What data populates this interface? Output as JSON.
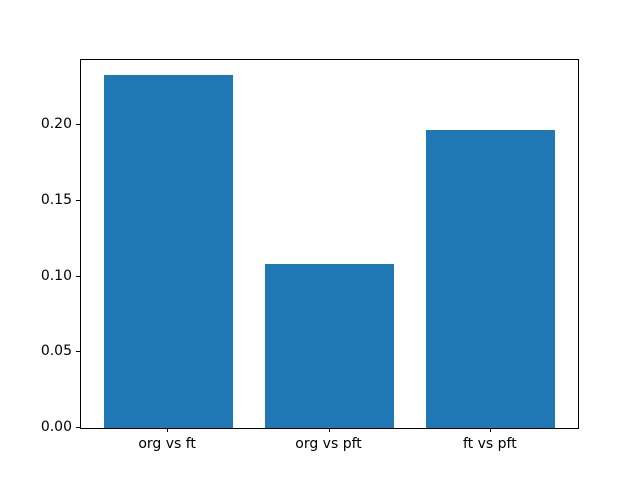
{
  "chart_data": {
    "type": "bar",
    "categories": [
      "org vs ft",
      "org vs pft",
      "ft vs pft"
    ],
    "values": [
      0.233,
      0.108,
      0.197
    ],
    "title": "",
    "xlabel": "",
    "ylabel": "",
    "ylim": [
      0,
      0.243
    ],
    "yticks": [
      0.0,
      0.05,
      0.1,
      0.15,
      0.2
    ],
    "ytick_labels": [
      "0.00",
      "0.05",
      "0.10",
      "0.15",
      "0.20"
    ],
    "bar_color": "#1f77b4",
    "grid": false,
    "legend": null
  }
}
